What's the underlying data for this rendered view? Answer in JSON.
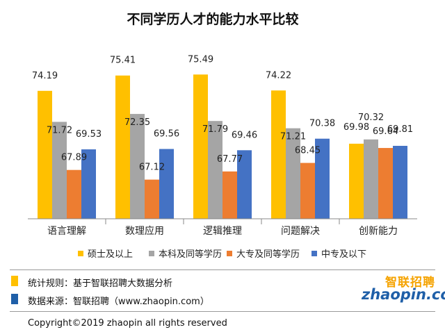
{
  "chart_data": {
    "type": "bar",
    "title": "不同学历人才的能力水平比较",
    "categories": [
      "语言理解",
      "数理应用",
      "逻辑推理",
      "问题解决",
      "创新能力"
    ],
    "series": [
      {
        "name": "硕士及以上",
        "color": "#ffc000",
        "values": [
          74.19,
          75.41,
          75.49,
          74.22,
          69.98
        ]
      },
      {
        "name": "本科及同等学历",
        "color": "#a5a5a5",
        "values": [
          71.72,
          72.35,
          71.79,
          71.21,
          70.32
        ]
      },
      {
        "name": "大专及同等学历",
        "color": "#ed7d31",
        "values": [
          67.89,
          67.12,
          67.77,
          68.45,
          69.64
        ]
      },
      {
        "name": "中专及以下",
        "color": "#4472c4",
        "values": [
          69.53,
          69.56,
          69.46,
          70.38,
          69.81
        ]
      }
    ],
    "ylim": [
      64,
      77
    ],
    "grid": false,
    "legend": "bottom"
  },
  "notes": {
    "rule_text": "统计规则：基于智联招聘大数据分析",
    "source_text": "数据来源：智联招聘（www.zhaopin.com）"
  },
  "logo": {
    "cn_text": "智联招聘",
    "en_text": "zhaopin.com"
  },
  "copyright": "Copyright©2019 zhaopin all rights reserved"
}
